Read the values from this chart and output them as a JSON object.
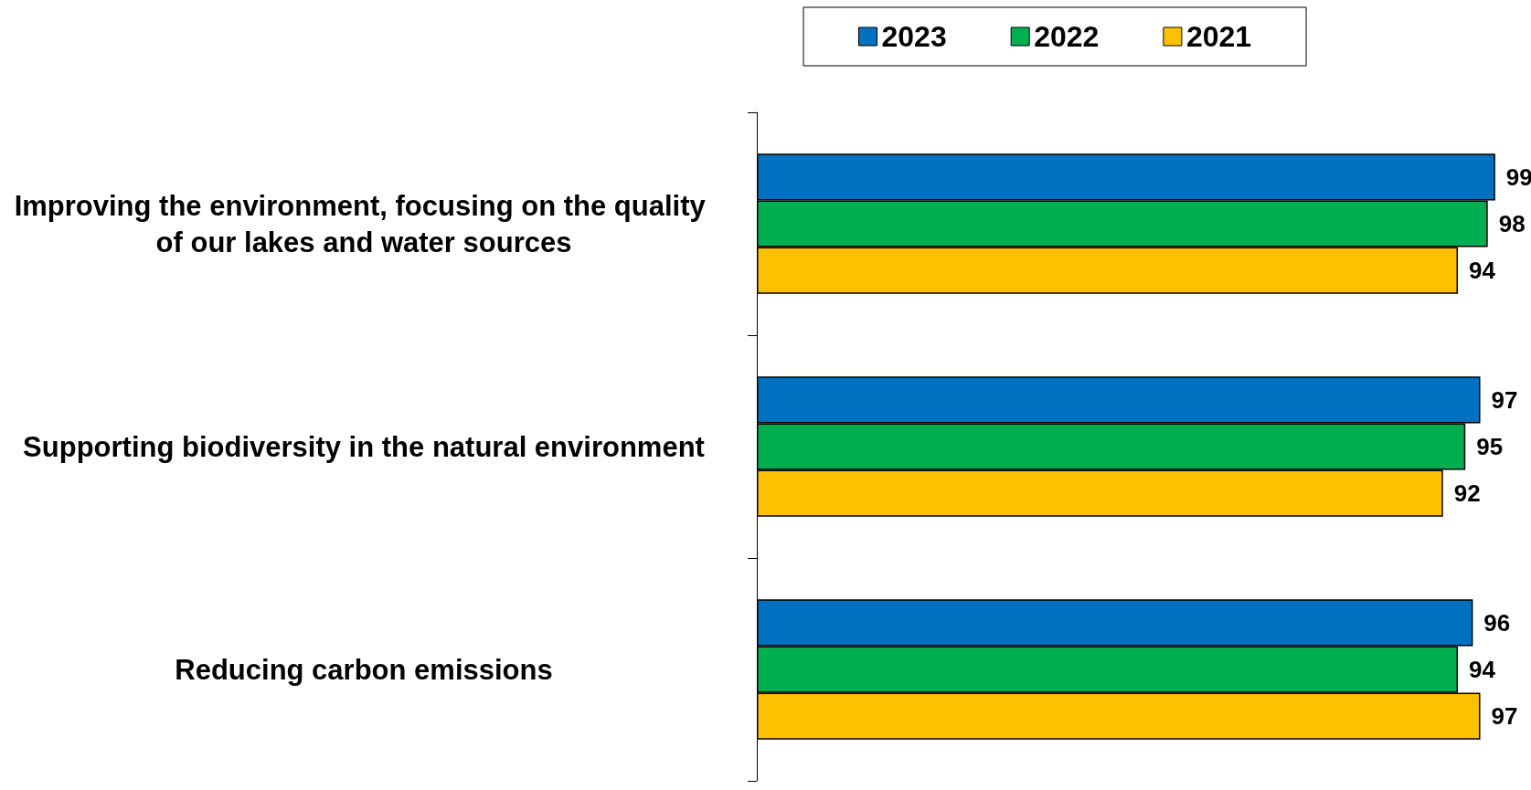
{
  "chart_data": {
    "type": "bar",
    "orientation": "horizontal",
    "categories": [
      "Improving the environment, focusing on the quality of our lakes and water sources",
      "Supporting biodiversity in the natural environment",
      "Reducing carbon emissions"
    ],
    "series": [
      {
        "name": "2023",
        "color": "#0070c0",
        "values": [
          99,
          97,
          96
        ]
      },
      {
        "name": "2022",
        "color": "#00b050",
        "values": [
          98,
          95,
          94
        ]
      },
      {
        "name": "2021",
        "color": "#ffc000",
        "values": [
          94,
          92,
          97
        ]
      }
    ],
    "data_labels": true,
    "legend": "top",
    "grid": false,
    "tick_labels": "y"
  }
}
